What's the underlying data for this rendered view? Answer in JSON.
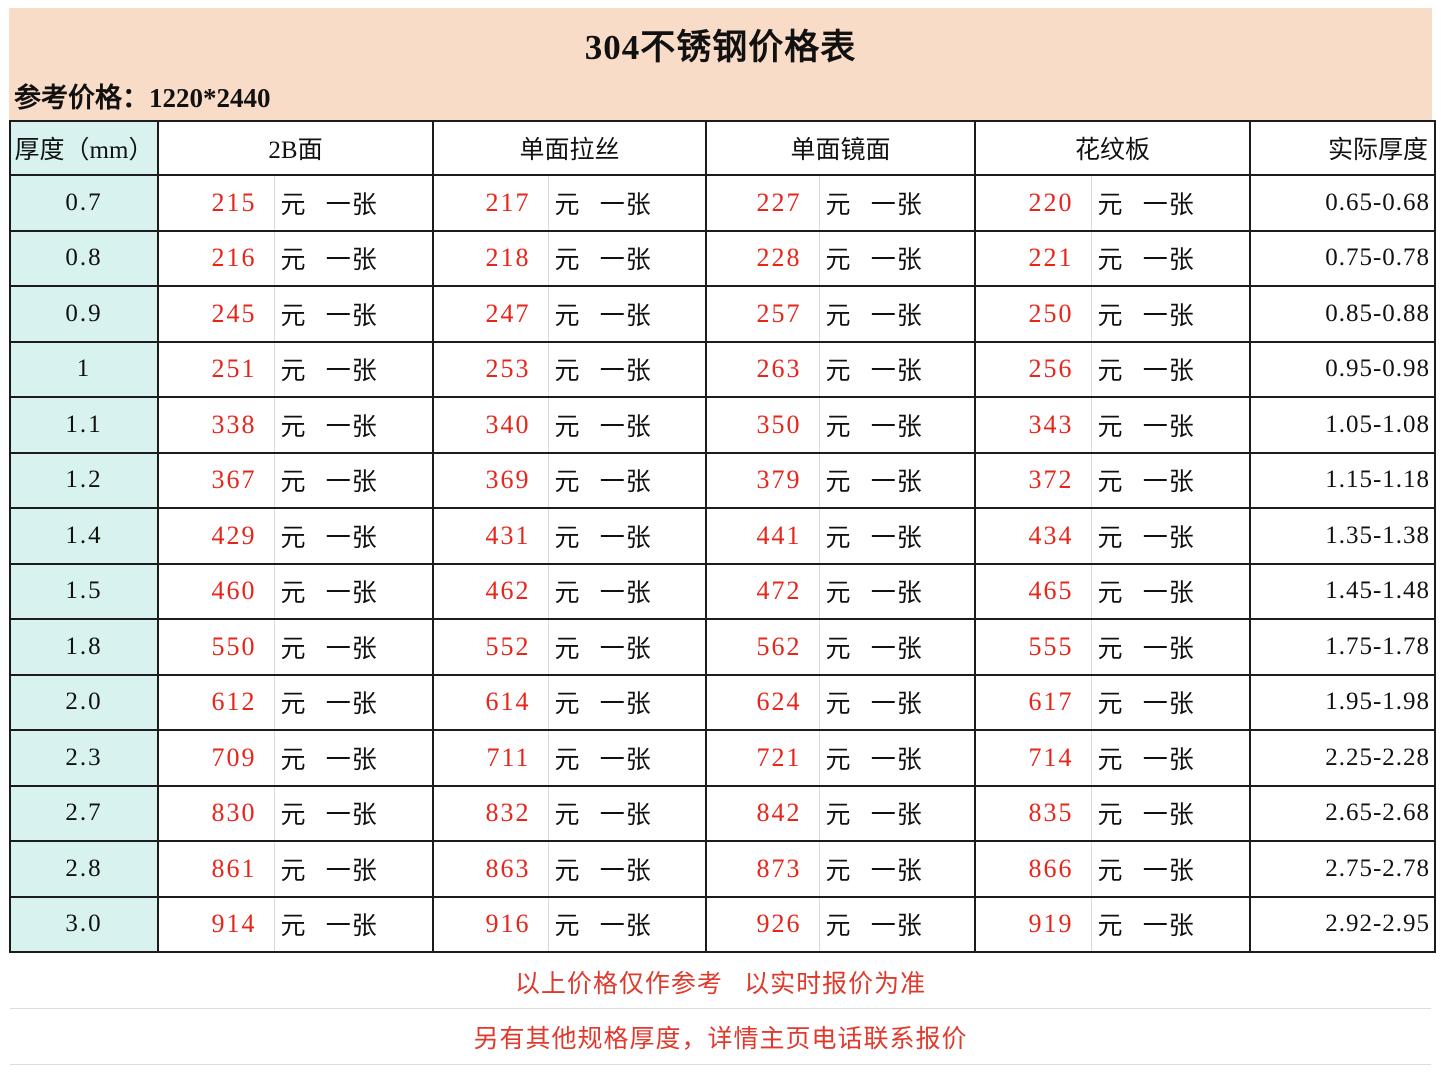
{
  "page": {
    "title": "304不锈钢价格表",
    "subtitle_label": "参考价格：",
    "subtitle_value": "1220*2440"
  },
  "table": {
    "headers": {
      "thickness": "厚度（mm）",
      "surfaces": [
        "2B面",
        "单面拉丝",
        "单面镜面",
        "花纹板"
      ],
      "actual": "实际厚度"
    },
    "unit_label": "元 一张",
    "rows": [
      {
        "thickness": "0.7",
        "prices": [
          215,
          217,
          227,
          220
        ],
        "actual": "0.65-0.68"
      },
      {
        "thickness": "0.8",
        "prices": [
          216,
          218,
          228,
          221
        ],
        "actual": "0.75-0.78"
      },
      {
        "thickness": "0.9",
        "prices": [
          245,
          247,
          257,
          250
        ],
        "actual": "0.85-0.88"
      },
      {
        "thickness": "1",
        "prices": [
          251,
          253,
          263,
          256
        ],
        "actual": "0.95-0.98"
      },
      {
        "thickness": "1.1",
        "prices": [
          338,
          340,
          350,
          343
        ],
        "actual": "1.05-1.08"
      },
      {
        "thickness": "1.2",
        "prices": [
          367,
          369,
          379,
          372
        ],
        "actual": "1.15-1.18"
      },
      {
        "thickness": "1.4",
        "prices": [
          429,
          431,
          441,
          434
        ],
        "actual": "1.35-1.38"
      },
      {
        "thickness": "1.5",
        "prices": [
          460,
          462,
          472,
          465
        ],
        "actual": "1.45-1.48"
      },
      {
        "thickness": "1.8",
        "prices": [
          550,
          552,
          562,
          555
        ],
        "actual": "1.75-1.78"
      },
      {
        "thickness": "2.0",
        "prices": [
          612,
          614,
          624,
          617
        ],
        "actual": "1.95-1.98"
      },
      {
        "thickness": "2.3",
        "prices": [
          709,
          711,
          721,
          714
        ],
        "actual": "2.25-2.28"
      },
      {
        "thickness": "2.7",
        "prices": [
          830,
          832,
          842,
          835
        ],
        "actual": "2.65-2.68"
      },
      {
        "thickness": "2.8",
        "prices": [
          861,
          863,
          873,
          866
        ],
        "actual": "2.75-2.78"
      },
      {
        "thickness": "3.0",
        "prices": [
          914,
          916,
          926,
          919
        ],
        "actual": "2.92-2.95"
      }
    ]
  },
  "notes": [
    "以上价格仅作参考 以实时报价为准",
    "另有其他规格厚度，详情主页电话联系报价"
  ],
  "colors": {
    "banner_bg": "#f9dcc7",
    "thickness_col_bg": "#d8f3ef",
    "price_red": "#e7261b",
    "note_red": "#df3a2d",
    "border_dark": "#1c1c1c",
    "divider_light": "#d9d9d9",
    "footer_line": "#dcdcdc",
    "text_dark": "#111111"
  }
}
